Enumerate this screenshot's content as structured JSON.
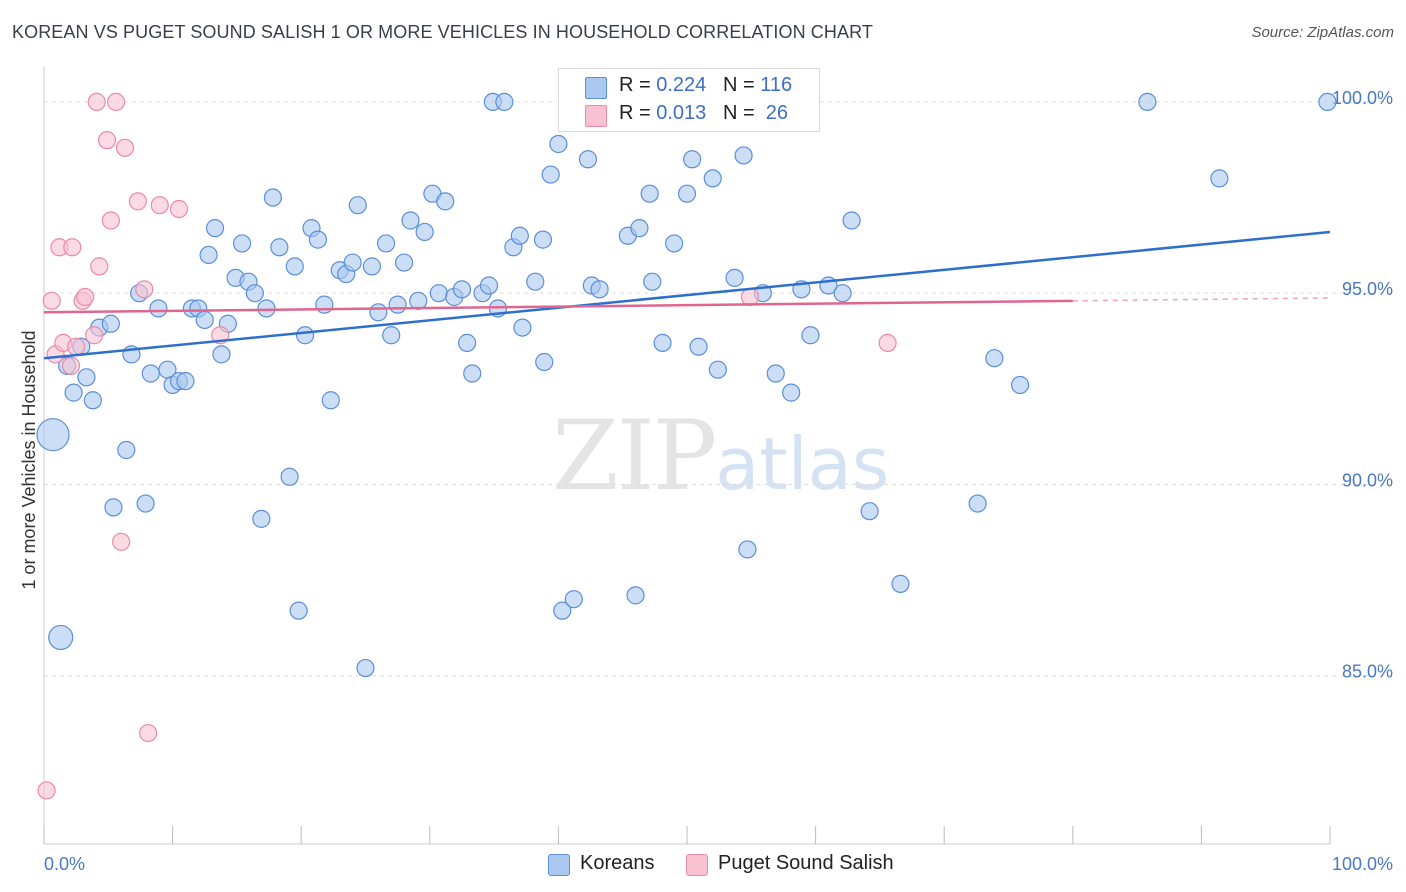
{
  "header": {
    "title": "KOREAN VS PUGET SOUND SALISH 1 OR MORE VEHICLES IN HOUSEHOLD CORRELATION CHART",
    "source": "Source: ZipAtlas.com"
  },
  "legend_top": {
    "rows": [
      {
        "r_label": "R =",
        "r_value": "0.224",
        "n_label": "N =",
        "n_value": "116"
      },
      {
        "r_label": "R =",
        "r_value": "0.013",
        "n_label": "N =",
        "n_value": " 26"
      }
    ]
  },
  "legend_bottom": {
    "koreans": "Koreans",
    "salish": "Puget Sound Salish"
  },
  "watermark": {
    "zip": "ZIP",
    "atlas": "atlas"
  },
  "colors": {
    "korean_fill": "#aac8f0",
    "korean_stroke": "#5b8fd6",
    "korean_line": "#2f6fcc",
    "salish_fill": "#f8c2d2",
    "salish_stroke": "#e98aa8",
    "salish_line": "#e0668f",
    "tick_label": "#4a78c2",
    "grid": "#dddddd"
  },
  "chart_data": {
    "type": "scatter",
    "title": "KOREAN VS PUGET SOUND SALISH 1 OR MORE VEHICLES IN HOUSEHOLD CORRELATION CHART",
    "xlabel": "",
    "ylabel": "1 or more Vehicles in Household",
    "xlim": [
      0,
      100
    ],
    "ylim": [
      80.6,
      101.2
    ],
    "x_tick_labels": [
      "0.0%",
      "100.0%"
    ],
    "y_ticks": [
      85,
      90,
      95,
      100
    ],
    "y_tick_labels": [
      "85.0%",
      "90.0%",
      "95.0%",
      "100.0%"
    ],
    "grid": true,
    "legend": "top-center",
    "series": [
      {
        "name": "Koreans",
        "r": 0.224,
        "n": 116,
        "trend": {
          "x": [
            0,
            100
          ],
          "y": [
            93.3,
            96.6
          ]
        },
        "points": [
          [
            0.7,
            91.3,
            3
          ],
          [
            1.3,
            86.0,
            2
          ],
          [
            1.8,
            93.1,
            1
          ],
          [
            2.3,
            92.4,
            1
          ],
          [
            3.3,
            92.8,
            1
          ],
          [
            3.8,
            92.2,
            1
          ],
          [
            4.3,
            94.1,
            1
          ],
          [
            5.2,
            94.2,
            1
          ],
          [
            2.9,
            93.6,
            1
          ],
          [
            6.4,
            90.9,
            1
          ],
          [
            5.4,
            89.4,
            1
          ],
          [
            7.9,
            89.5,
            1
          ],
          [
            6.8,
            93.4,
            1
          ],
          [
            7.4,
            95.0,
            1
          ],
          [
            8.3,
            92.9,
            1
          ],
          [
            8.9,
            94.6,
            1
          ],
          [
            9.6,
            93.0,
            1
          ],
          [
            10.0,
            92.6,
            1
          ],
          [
            10.5,
            92.7,
            1
          ],
          [
            11.0,
            92.7,
            1
          ],
          [
            11.5,
            94.6,
            1
          ],
          [
            12.0,
            94.6,
            1
          ],
          [
            12.5,
            94.3,
            1
          ],
          [
            12.8,
            96.0,
            1
          ],
          [
            13.3,
            96.7,
            1
          ],
          [
            13.8,
            93.4,
            1
          ],
          [
            14.3,
            94.2,
            1
          ],
          [
            14.9,
            95.4,
            1
          ],
          [
            15.4,
            96.3,
            1
          ],
          [
            15.9,
            95.3,
            1
          ],
          [
            16.4,
            95.0,
            1
          ],
          [
            16.9,
            89.1,
            1
          ],
          [
            17.3,
            94.6,
            1
          ],
          [
            17.8,
            97.5,
            1
          ],
          [
            18.3,
            96.2,
            1
          ],
          [
            19.1,
            90.2,
            1
          ],
          [
            19.5,
            95.7,
            1
          ],
          [
            19.8,
            86.7,
            1
          ],
          [
            20.3,
            93.9,
            1
          ],
          [
            20.8,
            96.7,
            1
          ],
          [
            21.3,
            96.4,
            1
          ],
          [
            21.8,
            94.7,
            1
          ],
          [
            22.3,
            92.2,
            1
          ],
          [
            23.0,
            95.6,
            1
          ],
          [
            23.5,
            95.5,
            1
          ],
          [
            24.0,
            95.8,
            1
          ],
          [
            24.4,
            97.3,
            1
          ],
          [
            25.0,
            85.2,
            1
          ],
          [
            25.5,
            95.7,
            1
          ],
          [
            26.0,
            94.5,
            1
          ],
          [
            26.6,
            96.3,
            1
          ],
          [
            27.0,
            93.9,
            1
          ],
          [
            27.5,
            94.7,
            1
          ],
          [
            28.0,
            95.8,
            1
          ],
          [
            28.5,
            96.9,
            1
          ],
          [
            29.1,
            94.8,
            1
          ],
          [
            29.6,
            96.6,
            1
          ],
          [
            30.2,
            97.6,
            1
          ],
          [
            30.7,
            95.0,
            1
          ],
          [
            31.2,
            97.4,
            1
          ],
          [
            31.9,
            94.9,
            1
          ],
          [
            32.5,
            95.1,
            1
          ],
          [
            32.9,
            93.7,
            1
          ],
          [
            33.3,
            92.9,
            1
          ],
          [
            34.1,
            95.0,
            1
          ],
          [
            34.6,
            95.2,
            1
          ],
          [
            34.9,
            100.0,
            1
          ],
          [
            35.3,
            94.6,
            1
          ],
          [
            35.8,
            100.0,
            1
          ],
          [
            36.5,
            96.2,
            1
          ],
          [
            37.0,
            96.5,
            1
          ],
          [
            37.2,
            94.1,
            1
          ],
          [
            38.2,
            95.3,
            1
          ],
          [
            38.8,
            96.4,
            1
          ],
          [
            38.9,
            93.2,
            1
          ],
          [
            39.4,
            98.1,
            1
          ],
          [
            40.0,
            98.9,
            1
          ],
          [
            40.3,
            86.7,
            1
          ],
          [
            40.8,
            100.0,
            1
          ],
          [
            41.2,
            87.0,
            1
          ],
          [
            42.3,
            98.5,
            1
          ],
          [
            42.6,
            95.2,
            1
          ],
          [
            43.2,
            95.1,
            1
          ],
          [
            45.4,
            96.5,
            1
          ],
          [
            46.0,
            87.1,
            1
          ],
          [
            46.3,
            96.7,
            1
          ],
          [
            47.1,
            97.6,
            1
          ],
          [
            47.3,
            95.3,
            1
          ],
          [
            48.1,
            93.7,
            1
          ],
          [
            49.0,
            96.3,
            1
          ],
          [
            50.0,
            97.6,
            1
          ],
          [
            50.4,
            98.5,
            1
          ],
          [
            50.9,
            93.6,
            1
          ],
          [
            52.0,
            98.0,
            1
          ],
          [
            52.4,
            93.0,
            1
          ],
          [
            53.7,
            95.4,
            1
          ],
          [
            54.4,
            98.6,
            1
          ],
          [
            54.7,
            88.3,
            1
          ],
          [
            55.9,
            95.0,
            1
          ],
          [
            56.9,
            92.9,
            1
          ],
          [
            58.1,
            92.4,
            1
          ],
          [
            58.9,
            95.1,
            1
          ],
          [
            59.6,
            93.9,
            1
          ],
          [
            61.0,
            95.2,
            1
          ],
          [
            62.1,
            95.0,
            1
          ],
          [
            62.8,
            96.9,
            1
          ],
          [
            64.2,
            89.3,
            1
          ],
          [
            66.6,
            87.4,
            1
          ],
          [
            72.6,
            89.5,
            1
          ],
          [
            73.9,
            93.3,
            1
          ],
          [
            75.9,
            92.6,
            1
          ],
          [
            85.8,
            100.0,
            1
          ],
          [
            91.4,
            98.0,
            1
          ],
          [
            99.8,
            100.0,
            1
          ]
        ]
      },
      {
        "name": "Puget Sound Salish",
        "r": 0.013,
        "n": 26,
        "trend": {
          "x": [
            0,
            80
          ],
          "y": [
            94.5,
            94.8
          ]
        },
        "points": [
          [
            0.2,
            82.0
          ],
          [
            0.6,
            94.8
          ],
          [
            0.9,
            93.4
          ],
          [
            1.2,
            96.2
          ],
          [
            1.5,
            93.7
          ],
          [
            2.1,
            93.1
          ],
          [
            2.2,
            96.2
          ],
          [
            2.5,
            93.6
          ],
          [
            3.0,
            94.8
          ],
          [
            3.2,
            94.9
          ],
          [
            3.9,
            93.9
          ],
          [
            4.3,
            95.7
          ],
          [
            4.9,
            99.0
          ],
          [
            5.2,
            96.9
          ],
          [
            5.6,
            100.0
          ],
          [
            6.0,
            88.5
          ],
          [
            6.3,
            98.8
          ],
          [
            7.3,
            97.4
          ],
          [
            7.8,
            95.1
          ],
          [
            8.1,
            83.5
          ],
          [
            9.0,
            97.3
          ],
          [
            10.5,
            97.2
          ],
          [
            4.1,
            100.0
          ],
          [
            13.7,
            93.9
          ],
          [
            54.9,
            94.9
          ],
          [
            65.6,
            93.7
          ]
        ]
      }
    ]
  }
}
